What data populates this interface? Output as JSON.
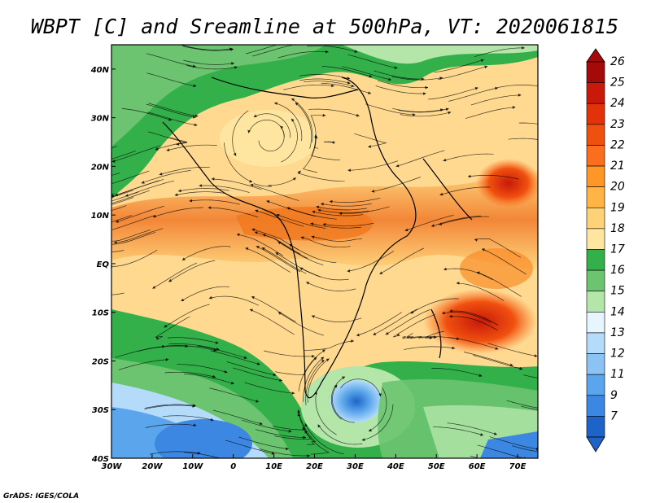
{
  "chart_data": {
    "type": "heatmap",
    "title": "WBPT [C] and Sreamline at 500hPa, VT: 2020061815",
    "x_ticks": [
      "30W",
      "20W",
      "10W",
      "0",
      "10E",
      "20E",
      "30E",
      "40E",
      "50E",
      "60E",
      "70E"
    ],
    "y_ticks": [
      "40N",
      "30N",
      "20N",
      "10N",
      "EQ",
      "10S",
      "20S",
      "30S",
      "40S"
    ],
    "xlim": [
      -30,
      75
    ],
    "ylim": [
      -40,
      45
    ],
    "colorbar": {
      "labels": [
        "26",
        "25",
        "24",
        "23",
        "22",
        "21",
        "20",
        "19",
        "18",
        "17",
        "16",
        "15",
        "14",
        "13",
        "12",
        "11",
        "9",
        "7"
      ],
      "colors": [
        "#a50a0a",
        "#c8190a",
        "#e1320a",
        "#f0500f",
        "#fa6e1e",
        "#ff9628",
        "#ffb446",
        "#ffd278",
        "#ffe6a0",
        "#33b04a",
        "#6cc470",
        "#b4e6aa",
        "#e6f5ff",
        "#b4dcfa",
        "#8cc3f5",
        "#5aa5eb",
        "#3c87e1",
        "#1e64c8"
      ]
    },
    "credit": "GrADS: IGES/COLA"
  }
}
